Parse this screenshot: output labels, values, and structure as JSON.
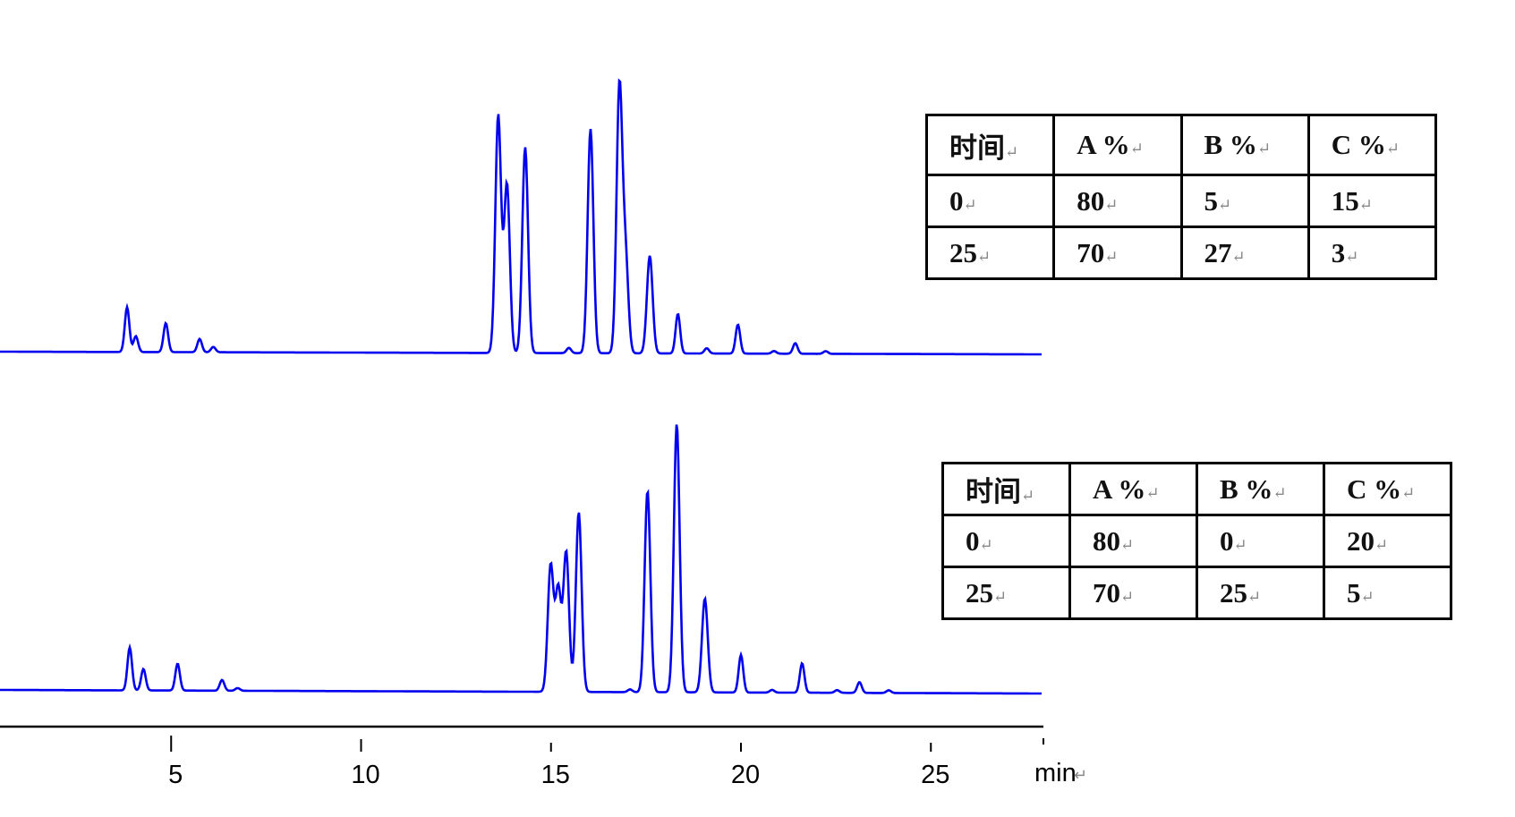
{
  "chart_data": [
    {
      "type": "line",
      "description_type": "chromatogram",
      "xlabel": "min",
      "x_ticks": [
        5,
        10,
        15,
        20,
        25
      ],
      "xlim": [
        0,
        27.9
      ],
      "color": "#0000ee",
      "peaks": [
        {
          "rt": 3.84,
          "height": 17
        },
        {
          "rt": 4.07,
          "height": 6
        },
        {
          "rt": 4.86,
          "height": 11
        },
        {
          "rt": 5.75,
          "height": 5
        },
        {
          "rt": 6.11,
          "height": 2
        },
        {
          "rt": 13.61,
          "height": 90
        },
        {
          "rt": 13.84,
          "height": 64
        },
        {
          "rt": 14.32,
          "height": 78
        },
        {
          "rt": 15.47,
          "height": 2
        },
        {
          "rt": 16.04,
          "height": 85
        },
        {
          "rt": 16.8,
          "height": 100
        },
        {
          "rt": 16.96,
          "height": 36
        },
        {
          "rt": 17.6,
          "height": 37
        },
        {
          "rt": 18.34,
          "height": 15
        },
        {
          "rt": 19.1,
          "height": 2
        },
        {
          "rt": 19.92,
          "height": 11
        },
        {
          "rt": 20.87,
          "height": 1
        },
        {
          "rt": 21.43,
          "height": 4
        },
        {
          "rt": 22.23,
          "height": 1
        }
      ],
      "gradient_table": {
        "headers": [
          "时间",
          "A %",
          "B %",
          "C %"
        ],
        "rows": [
          [
            "0",
            "80",
            "5",
            "15"
          ],
          [
            "25",
            "70",
            "27",
            "3"
          ]
        ]
      }
    },
    {
      "type": "line",
      "description_type": "chromatogram",
      "xlabel": "min",
      "x_ticks": [
        5,
        10,
        15,
        20,
        25
      ],
      "xlim": [
        0,
        27.9
      ],
      "color": "#0000ee",
      "peaks": [
        {
          "rt": 3.91,
          "height": 16
        },
        {
          "rt": 4.27,
          "height": 8
        },
        {
          "rt": 5.17,
          "height": 10
        },
        {
          "rt": 6.34,
          "height": 4
        },
        {
          "rt": 6.75,
          "height": 1
        },
        {
          "rt": 14.99,
          "height": 47
        },
        {
          "rt": 15.19,
          "height": 38
        },
        {
          "rt": 15.4,
          "height": 52
        },
        {
          "rt": 15.73,
          "height": 67
        },
        {
          "rt": 17.08,
          "height": 1
        },
        {
          "rt": 17.54,
          "height": 75
        },
        {
          "rt": 18.31,
          "height": 100
        },
        {
          "rt": 19.05,
          "height": 35
        },
        {
          "rt": 20.0,
          "height": 14
        },
        {
          "rt": 20.82,
          "height": 1
        },
        {
          "rt": 21.61,
          "height": 11
        },
        {
          "rt": 22.53,
          "height": 1
        },
        {
          "rt": 23.12,
          "height": 4
        },
        {
          "rt": 23.89,
          "height": 1
        }
      ],
      "gradient_table": {
        "headers": [
          "时间",
          "A %",
          "B %",
          "C %"
        ],
        "rows": [
          [
            "0",
            "80",
            "0",
            "20"
          ],
          [
            "25",
            "70",
            "25",
            "5"
          ]
        ]
      }
    }
  ],
  "axis": {
    "tick_labels": [
      "5",
      "10",
      "15",
      "20",
      "25"
    ],
    "unit": "min"
  }
}
